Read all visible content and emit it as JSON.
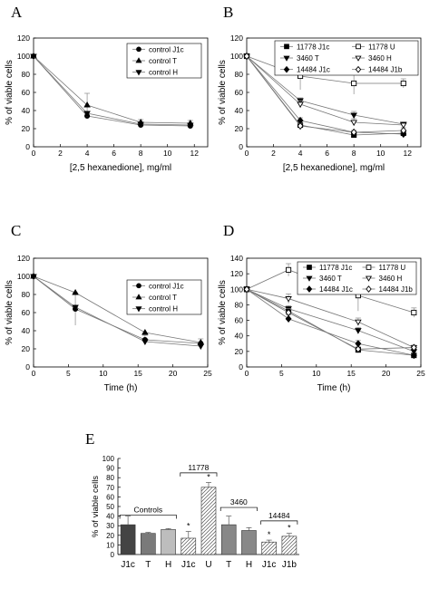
{
  "panels": [
    "A",
    "B",
    "C",
    "D",
    "E"
  ],
  "chart_data": [
    {
      "id": "A",
      "type": "line",
      "xlabel": "[2,5 hexanedione], mg/ml",
      "ylabel": "% of viable cells",
      "xlim": [
        0,
        13
      ],
      "ylim": [
        0,
        120
      ],
      "xticks": [
        0,
        2,
        4,
        6,
        8,
        10,
        12
      ],
      "yticks": [
        0,
        20,
        40,
        60,
        80,
        100,
        120
      ],
      "x": [
        0,
        4,
        8,
        11.7
      ],
      "legend_position": "top-right",
      "series": [
        {
          "name": "control J1c",
          "marker": "circle-filled",
          "values": [
            100,
            34,
            24,
            23
          ],
          "err": [
            0,
            0,
            0,
            0
          ]
        },
        {
          "name": "control T",
          "marker": "triangle-up-filled",
          "values": [
            100,
            46,
            27,
            26
          ],
          "err": [
            0,
            13,
            3,
            3
          ]
        },
        {
          "name": "control H",
          "marker": "triangle-down-filled",
          "values": [
            100,
            37,
            25,
            24
          ],
          "err": [
            0,
            0,
            0,
            0
          ]
        }
      ]
    },
    {
      "id": "B",
      "type": "line",
      "xlabel": "[2,5 hexanedione], mg/ml",
      "ylabel": "% of viable cells",
      "xlim": [
        0,
        13
      ],
      "ylim": [
        0,
        120
      ],
      "xticks": [
        0,
        2,
        4,
        6,
        8,
        10,
        12
      ],
      "yticks": [
        0,
        20,
        40,
        60,
        80,
        100,
        120
      ],
      "x": [
        0,
        4,
        8,
        11.7
      ],
      "legend_position": "top",
      "series": [
        {
          "name": "11778 J1c",
          "marker": "square-filled",
          "values": [
            100,
            24,
            13,
            15
          ],
          "err": [
            0,
            5,
            2,
            3
          ]
        },
        {
          "name": "11778 U",
          "marker": "square-open",
          "values": [
            100,
            78,
            70,
            70
          ],
          "err": [
            0,
            15,
            12,
            5
          ]
        },
        {
          "name": "3460   T",
          "marker": "triangle-down-filled",
          "values": [
            100,
            51,
            35,
            25
          ],
          "err": [
            0,
            3,
            4,
            2
          ]
        },
        {
          "name": "3460   H",
          "marker": "triangle-down-open",
          "values": [
            100,
            47,
            27,
            24
          ],
          "err": [
            0,
            4,
            4,
            2
          ]
        },
        {
          "name": "14484 J1c",
          "marker": "diamond-filled",
          "values": [
            100,
            29,
            16,
            14
          ],
          "err": [
            0,
            3,
            2,
            2
          ]
        },
        {
          "name": "14484 J1b",
          "marker": "diamond-open",
          "values": [
            100,
            23,
            16,
            18
          ],
          "err": [
            0,
            3,
            2,
            3
          ]
        }
      ]
    },
    {
      "id": "C",
      "type": "line",
      "xlabel": "Time (h)",
      "ylabel": "% of viable cells",
      "xlim": [
        0,
        25
      ],
      "ylim": [
        0,
        120
      ],
      "xticks": [
        0,
        5,
        10,
        15,
        20,
        25
      ],
      "yticks": [
        0,
        20,
        40,
        60,
        80,
        100,
        120
      ],
      "x": [
        0,
        6,
        16,
        24
      ],
      "legend_position": "top-right",
      "series": [
        {
          "name": "control J1c",
          "marker": "circle-filled",
          "values": [
            100,
            64,
            30,
            26
          ],
          "err": [
            0,
            18,
            5,
            5
          ]
        },
        {
          "name": "control T",
          "marker": "triangle-up-filled",
          "values": [
            100,
            82,
            38,
            27
          ],
          "err": [
            0,
            0,
            0,
            0
          ]
        },
        {
          "name": "control H",
          "marker": "triangle-down-filled",
          "values": [
            100,
            66,
            28,
            23
          ],
          "err": [
            0,
            0,
            0,
            0
          ]
        }
      ]
    },
    {
      "id": "D",
      "type": "line",
      "xlabel": "Time (h)",
      "ylabel": "% of viable cells",
      "xlim": [
        0,
        25
      ],
      "ylim": [
        0,
        140
      ],
      "xticks": [
        0,
        5,
        10,
        15,
        20,
        25
      ],
      "yticks": [
        0,
        20,
        40,
        60,
        80,
        100,
        120,
        140
      ],
      "x": [
        0,
        6,
        16,
        24
      ],
      "legend_position": "top-right",
      "series": [
        {
          "name": "11778 J1c",
          "marker": "square-filled",
          "values": [
            100,
            72,
            22,
            15
          ],
          "err": [
            0,
            5,
            3,
            3
          ]
        },
        {
          "name": "11778 U",
          "marker": "square-open",
          "values": [
            100,
            125,
            92,
            70
          ],
          "err": [
            0,
            8,
            20,
            6
          ]
        },
        {
          "name": "3460 T",
          "marker": "triangle-down-filled",
          "values": [
            100,
            75,
            47,
            20
          ],
          "err": [
            0,
            4,
            4,
            3
          ]
        },
        {
          "name": "3460 H",
          "marker": "triangle-down-open",
          "values": [
            100,
            88,
            58,
            25
          ],
          "err": [
            0,
            6,
            5,
            3
          ]
        },
        {
          "name": "14484 J1c",
          "marker": "diamond-filled",
          "values": [
            100,
            62,
            30,
            15
          ],
          "err": [
            0,
            5,
            4,
            3
          ]
        },
        {
          "name": "14484 J1b",
          "marker": "diamond-open",
          "values": [
            100,
            70,
            23,
            25
          ],
          "err": [
            0,
            5,
            3,
            3
          ]
        }
      ]
    },
    {
      "id": "E",
      "type": "bar",
      "ylabel": "% of viable cells",
      "ylim": [
        0,
        100
      ],
      "yticks": [
        0,
        10,
        20,
        30,
        40,
        50,
        60,
        70,
        80,
        90,
        100
      ],
      "categories": [
        "J1c",
        "T",
        "H",
        "J1c",
        "U",
        "T",
        "H",
        "J1c",
        "J1b"
      ],
      "values": [
        31,
        22,
        26,
        17,
        70,
        31,
        25,
        13,
        19
      ],
      "err": [
        9,
        1,
        1,
        7,
        5,
        9,
        3,
        2,
        3
      ],
      "significant": [
        false,
        false,
        false,
        true,
        true,
        false,
        false,
        true,
        true
      ],
      "fills": [
        "#444444",
        "#7a7a7a",
        "#bdbdbd",
        "hatch",
        "hatch",
        "#888888",
        "#888888",
        "hatch",
        "hatch"
      ],
      "groups": [
        {
          "label": "Controls",
          "from": 0,
          "to": 2
        },
        {
          "label": "11778",
          "from": 3,
          "to": 4
        },
        {
          "label": "3460",
          "from": 5,
          "to": 6
        },
        {
          "label": "14484",
          "from": 7,
          "to": 8
        }
      ],
      "significance_mark": "*"
    }
  ]
}
